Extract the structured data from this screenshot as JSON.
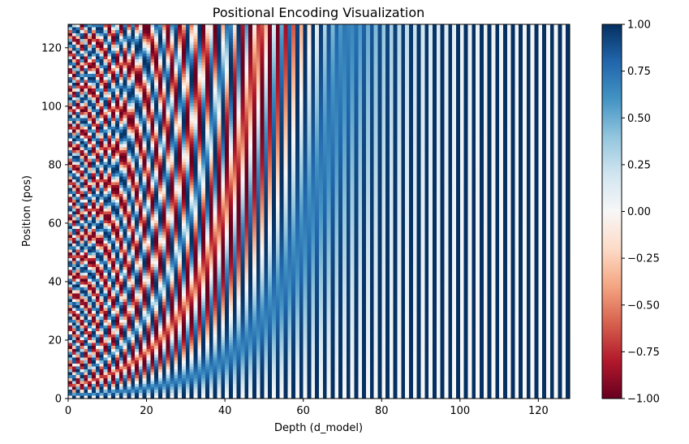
{
  "chart_data": {
    "type": "heatmap",
    "title": "Positional Encoding Visualization",
    "xlabel": "Depth (d_model)",
    "ylabel": "Position (pos)",
    "xlim": [
      0,
      128
    ],
    "ylim": [
      0,
      128
    ],
    "x_ticks": [
      0,
      20,
      40,
      60,
      80,
      100,
      120
    ],
    "y_ticks": [
      0,
      20,
      40,
      60,
      80,
      100,
      120
    ],
    "n_positions": 128,
    "d_model": 128,
    "encoding": "sinusoidal: even depth = sin(pos / 10000^(i/d_model)), odd depth = cos(pos / 10000^((i-1)/d_model))",
    "colormap": "RdBu",
    "colormap_stops": [
      "#67001f",
      "#b2182b",
      "#d6604d",
      "#f4a582",
      "#fddbc7",
      "#f7f7f7",
      "#d1e5f0",
      "#92c5de",
      "#4393c3",
      "#2166ac",
      "#053061"
    ],
    "value_range": [
      -1.0,
      1.0
    ],
    "colorbar_ticks": [
      "1.00",
      "0.75",
      "0.50",
      "0.25",
      "0.00",
      "−0.25",
      "−0.50",
      "−0.75",
      "−1.00"
    ],
    "colorbar_tick_values": [
      1.0,
      0.75,
      0.5,
      0.25,
      0.0,
      -0.25,
      -0.5,
      -0.75,
      -1.0
    ],
    "grid": false
  }
}
